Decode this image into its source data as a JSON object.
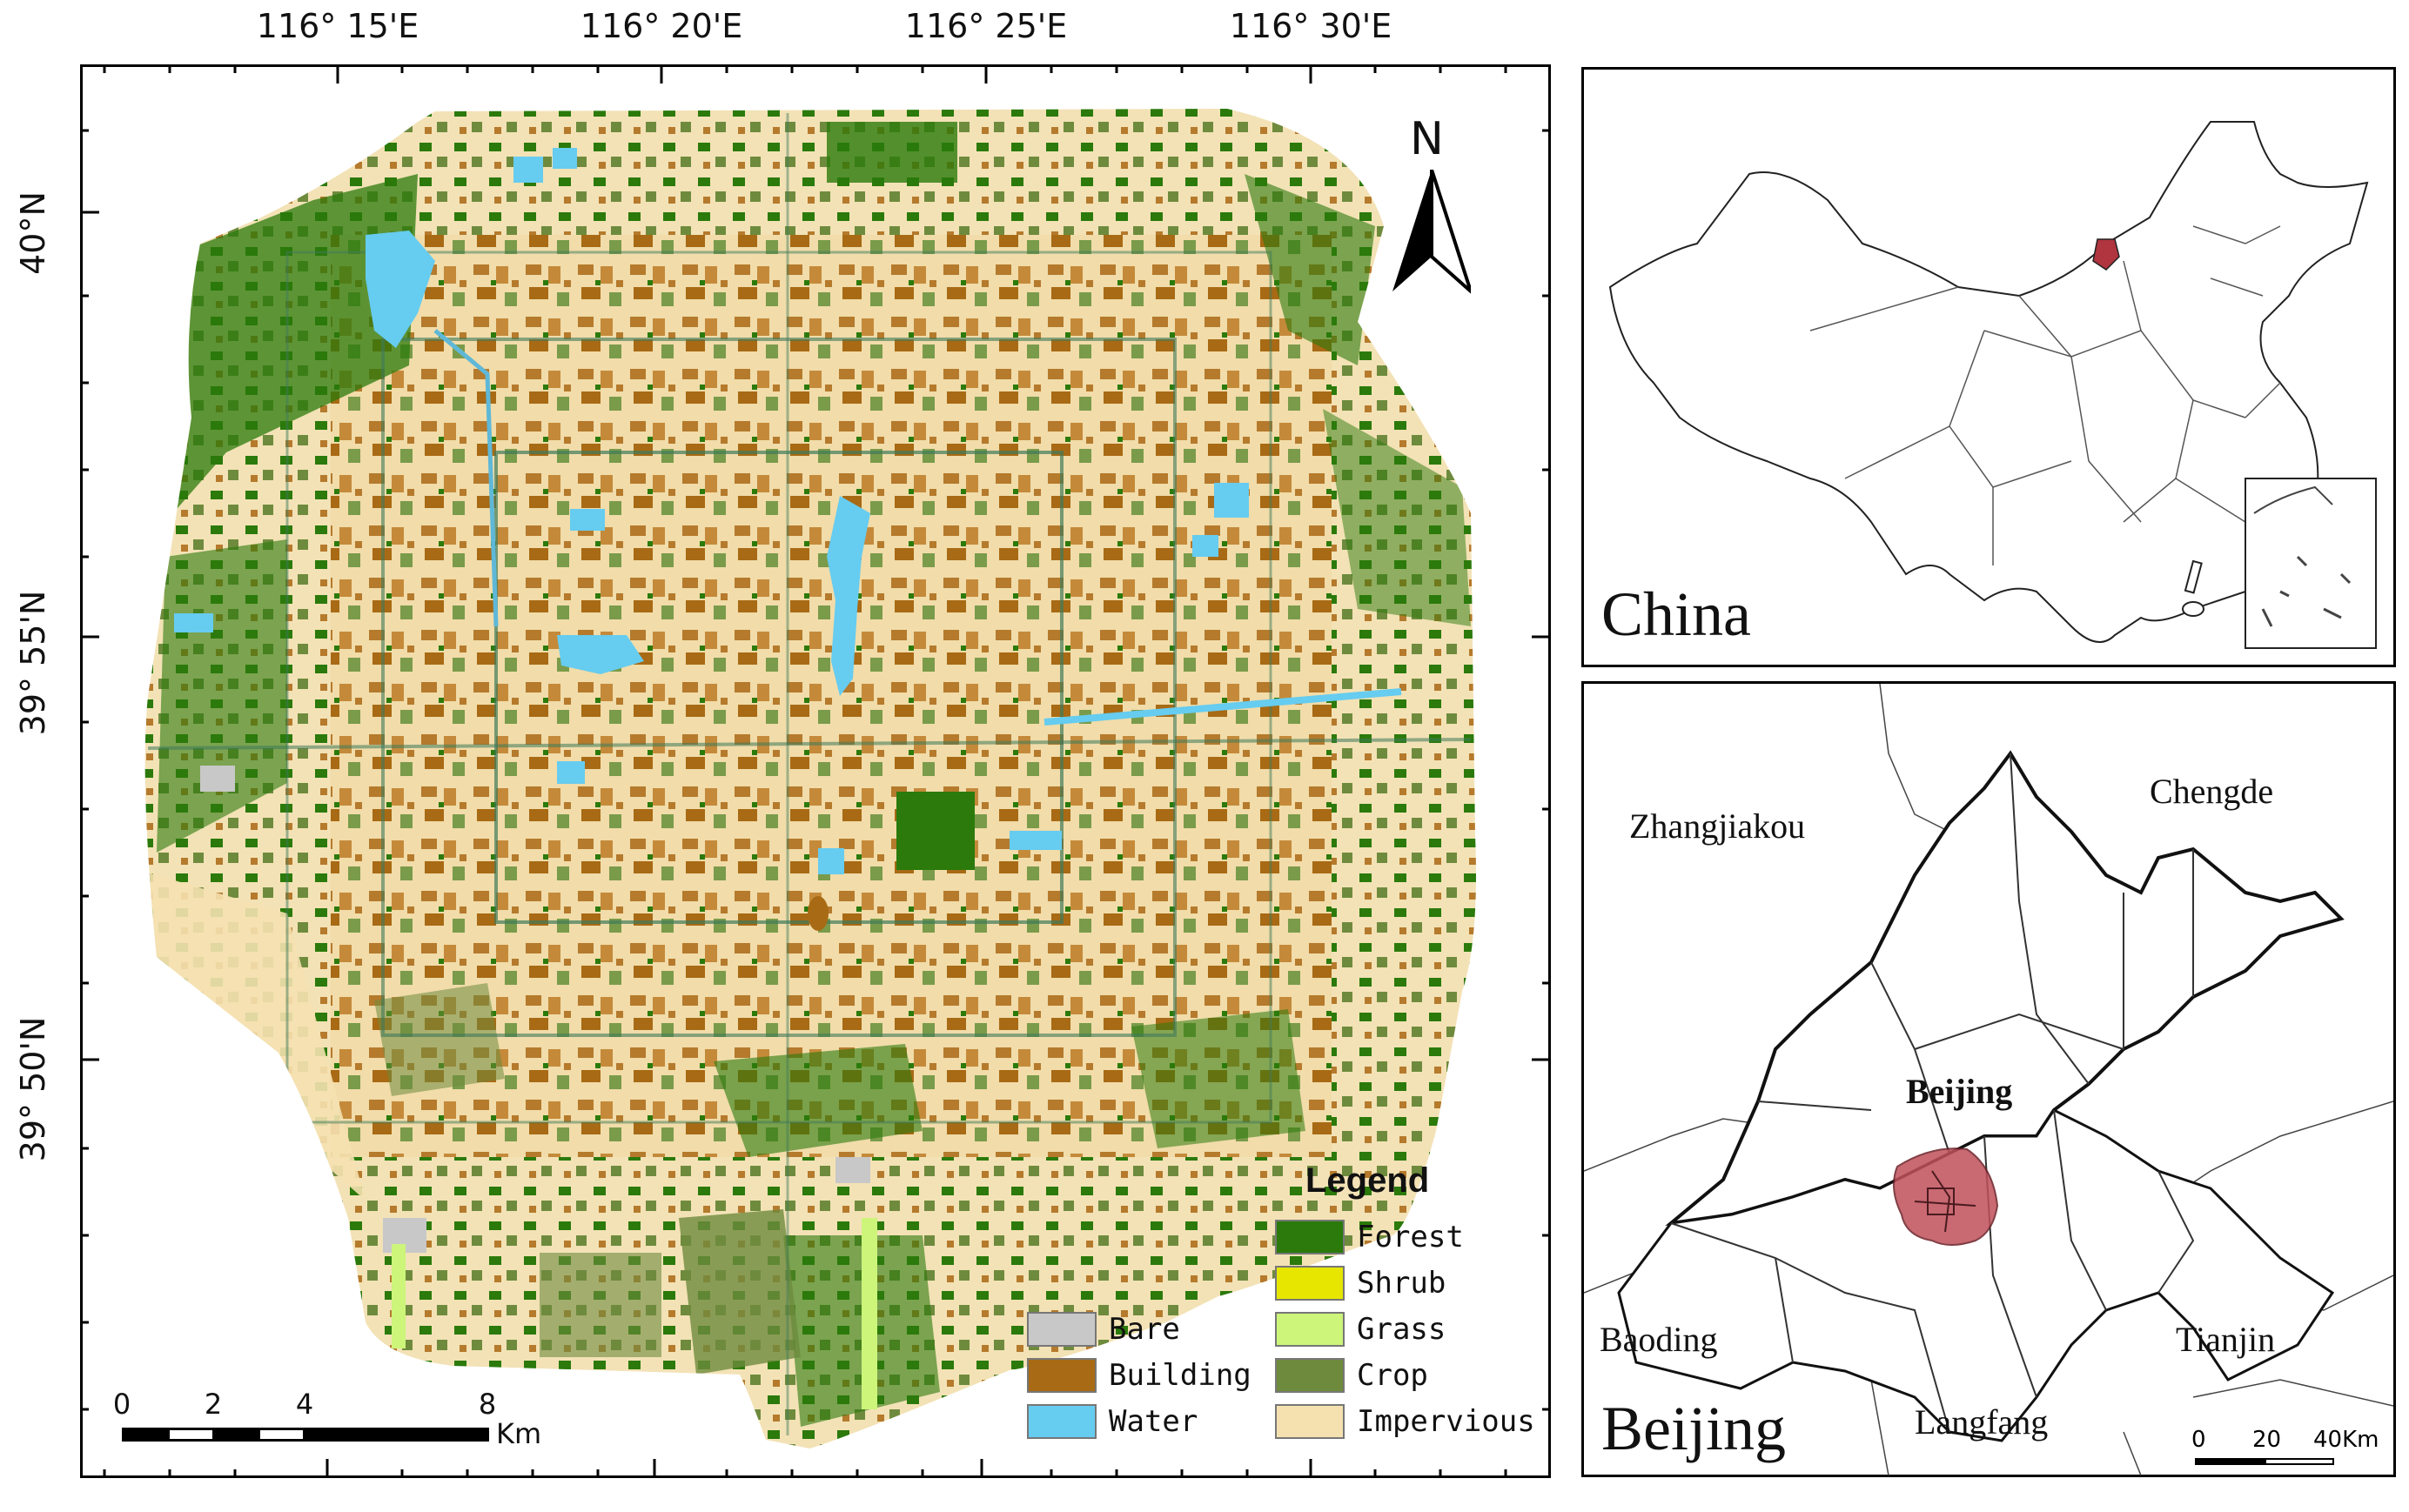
{
  "main_map": {
    "top_coords": [
      "116° 15'E",
      "116° 20'E",
      "116° 25'E",
      "116° 30'E"
    ],
    "left_coords": [
      "40°N",
      "39° 55'N",
      "39° 50'N"
    ],
    "north_label": "N",
    "legend": {
      "title": "Legend",
      "items": [
        {
          "label": "Forest",
          "color": "#2b7a0b"
        },
        {
          "label": "Shrub",
          "color": "#e6e600"
        },
        {
          "label": "Grass",
          "color": "#ccf57a"
        },
        {
          "label": "Crop",
          "color": "#6e8b3d"
        },
        {
          "label": "Impervious",
          "color": "#f5e1b0"
        },
        {
          "label": "Bare",
          "color": "#c8c8c8"
        },
        {
          "label": "Building",
          "color": "#a86a14"
        },
        {
          "label": "Water",
          "color": "#66ccf0"
        }
      ]
    },
    "scale": {
      "labels": [
        "0",
        "2",
        "4",
        "8"
      ],
      "unit": "Km"
    }
  },
  "china_inset": {
    "title": "China",
    "highlight_color": "#b0353f"
  },
  "beijing_inset": {
    "title": "Beijing",
    "center_label": "Beijing",
    "neighbors": [
      "Zhangjiakou",
      "Chengde",
      "Baoding",
      "Tianjin",
      "Langfang"
    ],
    "highlight_color": "#c0505a",
    "scale": {
      "labels": [
        "0",
        "20",
        "40Km"
      ]
    }
  }
}
